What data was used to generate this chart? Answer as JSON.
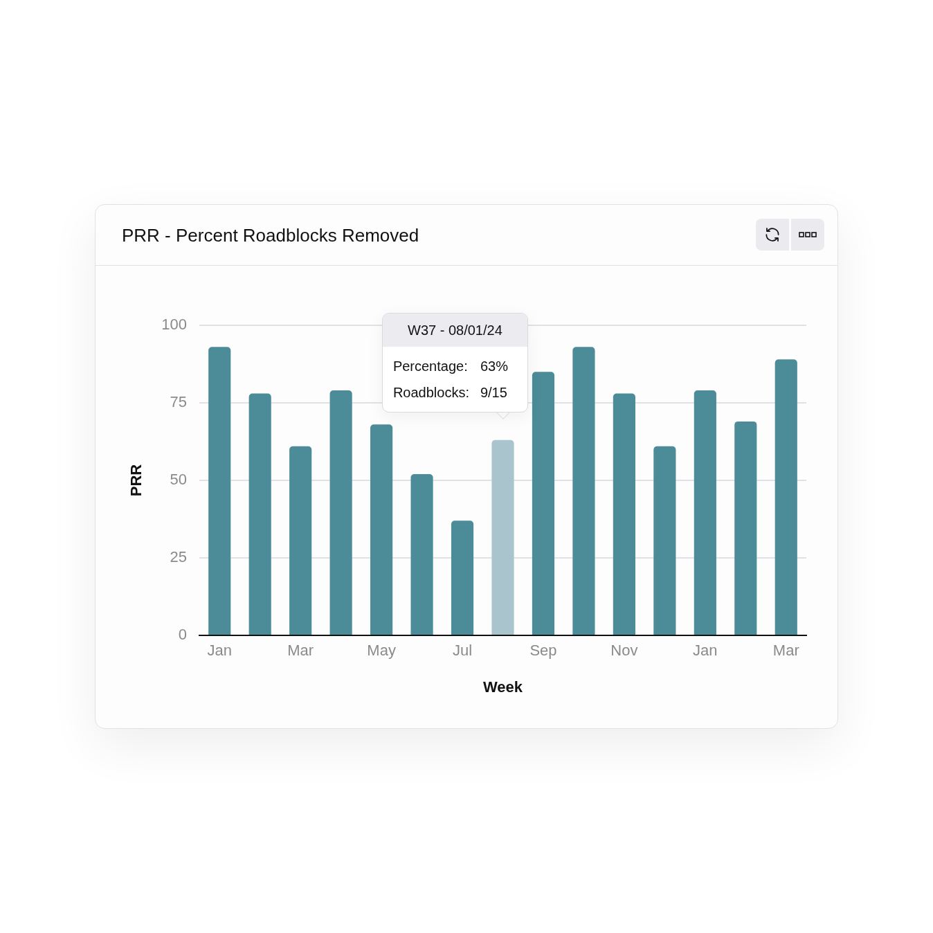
{
  "chart_data": {
    "type": "bar",
    "title": "PRR - Percent Roadblocks Removed",
    "xlabel": "Week",
    "ylabel": "PRR",
    "categories": [
      "Jan",
      null,
      "Mar",
      null,
      "May",
      null,
      "Jul",
      null,
      "Sep",
      null,
      "Nov",
      null,
      "Jan",
      null,
      "Mar"
    ],
    "values": [
      93,
      78,
      61,
      79,
      68,
      52,
      37,
      63,
      85,
      93,
      78,
      61,
      79,
      69,
      89
    ],
    "colors": [
      "#4b8c98",
      "#4b8c98",
      "#4b8c98",
      "#4b8c98",
      "#4b8c98",
      "#4b8c98",
      "#4b8c98",
      "#a9c4cd",
      "#4b8c98",
      "#4b8c98",
      "#4b8c98",
      "#4b8c98",
      "#4b8c98",
      "#4b8c98",
      "#4b8c98"
    ],
    "ylim": [
      0,
      100
    ],
    "yticks": [
      0,
      25,
      50,
      75,
      100
    ],
    "grid": "y",
    "annotations": [
      "W37 - 08/01/24",
      "Percentage: 63%",
      "Roadblocks: 9/15"
    ]
  }
}
